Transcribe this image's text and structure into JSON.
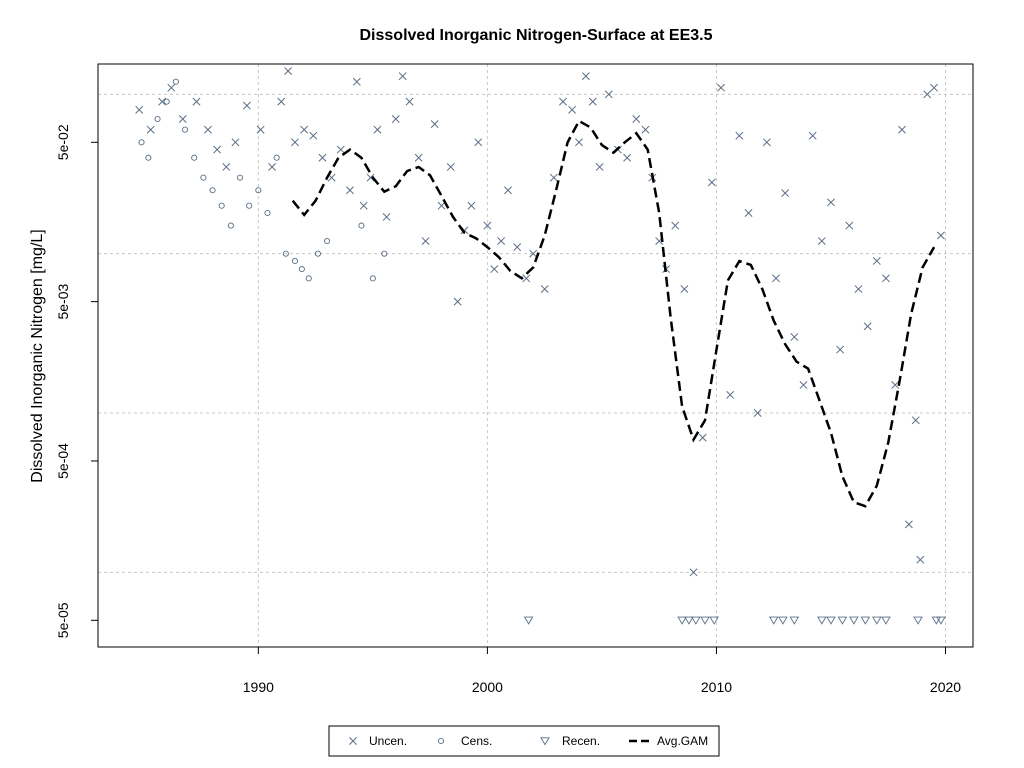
{
  "chart_data": {
    "type": "scatter",
    "title": "Dissolved Inorganic Nitrogen-Surface at EE3.5",
    "xlabel": "",
    "ylabel": "Dissolved Inorganic Nitrogen [mg/L]",
    "y_scale": "log",
    "xlim": [
      1983.0,
      2021.2
    ],
    "ylim": [
      3.4e-05,
      0.155
    ],
    "x_ticks": [
      1990,
      2000,
      2010,
      2020
    ],
    "y_ticks": [
      0.05,
      0.005,
      0.0005,
      5e-05
    ],
    "y_tick_labels": [
      "5e-02",
      "5e-03",
      "5e-04",
      "5e-05"
    ],
    "y_gridlines": [
      0.1,
      0.01,
      0.001,
      0.0001
    ],
    "grid": true,
    "legend": {
      "position": "bottom-center",
      "entries": [
        "Uncen.",
        "Cens.",
        "Recen.",
        "Avg.GAM"
      ]
    },
    "colors": {
      "points": "#5a6e86",
      "gam": "#000000",
      "grid": "#c8c8c8"
    },
    "series": [
      {
        "name": "Uncen.",
        "marker": "x",
        "points": [
          [
            1984.8,
            0.08
          ],
          [
            1985.3,
            0.06
          ],
          [
            1985.8,
            0.09
          ],
          [
            1986.2,
            0.11
          ],
          [
            1986.7,
            0.07
          ],
          [
            1987.3,
            0.09
          ],
          [
            1987.8,
            0.06
          ],
          [
            1988.2,
            0.045
          ],
          [
            1988.6,
            0.035
          ],
          [
            1989.0,
            0.05
          ],
          [
            1989.5,
            0.085
          ],
          [
            1990.1,
            0.06
          ],
          [
            1990.6,
            0.035
          ],
          [
            1991.0,
            0.09
          ],
          [
            1991.3,
            0.14
          ],
          [
            1991.6,
            0.05
          ],
          [
            1992.0,
            0.06
          ],
          [
            1992.4,
            0.055
          ],
          [
            1992.8,
            0.04
          ],
          [
            1993.2,
            0.03
          ],
          [
            1993.6,
            0.045
          ],
          [
            1994.0,
            0.025
          ],
          [
            1994.3,
            0.12
          ],
          [
            1994.6,
            0.02
          ],
          [
            1994.9,
            0.03
          ],
          [
            1995.2,
            0.06
          ],
          [
            1995.6,
            0.017
          ],
          [
            1996.0,
            0.07
          ],
          [
            1996.3,
            0.13
          ],
          [
            1996.6,
            0.09
          ],
          [
            1997.0,
            0.04
          ],
          [
            1997.3,
            0.012
          ],
          [
            1997.7,
            0.065
          ],
          [
            1998.0,
            0.02
          ],
          [
            1998.4,
            0.035
          ],
          [
            1998.7,
            0.005
          ],
          [
            1999.0,
            0.014
          ],
          [
            1999.3,
            0.02
          ],
          [
            1999.6,
            0.05
          ],
          [
            2000.0,
            0.015
          ],
          [
            2000.3,
            0.008
          ],
          [
            2000.6,
            0.012
          ],
          [
            2000.9,
            0.025
          ],
          [
            2001.3,
            0.011
          ],
          [
            2001.7,
            0.007
          ],
          [
            2002.0,
            0.01
          ],
          [
            2002.5,
            0.006
          ],
          [
            2002.9,
            0.03
          ],
          [
            2003.3,
            0.09
          ],
          [
            2003.7,
            0.08
          ],
          [
            2004.0,
            0.05
          ],
          [
            2004.3,
            0.13
          ],
          [
            2004.6,
            0.09
          ],
          [
            2004.9,
            0.035
          ],
          [
            2005.3,
            0.1
          ],
          [
            2005.7,
            0.045
          ],
          [
            2006.1,
            0.04
          ],
          [
            2006.5,
            0.07
          ],
          [
            2006.9,
            0.06
          ],
          [
            2007.2,
            0.03
          ],
          [
            2007.5,
            0.012
          ],
          [
            2007.8,
            0.008
          ],
          [
            2008.2,
            0.015
          ],
          [
            2008.6,
            0.006
          ],
          [
            2009.0,
            0.0001
          ],
          [
            2009.4,
            0.0007
          ],
          [
            2009.8,
            0.028
          ],
          [
            2010.2,
            0.11
          ],
          [
            2010.6,
            0.0013
          ],
          [
            2011.0,
            0.055
          ],
          [
            2011.4,
            0.018
          ],
          [
            2011.8,
            0.001
          ],
          [
            2012.2,
            0.05
          ],
          [
            2012.6,
            0.007
          ],
          [
            2013.0,
            0.024
          ],
          [
            2013.4,
            0.003
          ],
          [
            2013.8,
            0.0015
          ],
          [
            2014.2,
            0.055
          ],
          [
            2014.6,
            0.012
          ],
          [
            2015.0,
            0.021
          ],
          [
            2015.4,
            0.0025
          ],
          [
            2015.8,
            0.015
          ],
          [
            2016.2,
            0.006
          ],
          [
            2016.6,
            0.0035
          ],
          [
            2017.0,
            0.009
          ],
          [
            2017.4,
            0.007
          ],
          [
            2017.8,
            0.0015
          ],
          [
            2018.1,
            0.06
          ],
          [
            2018.4,
            0.0002
          ],
          [
            2018.7,
            0.0009
          ],
          [
            2018.9,
            0.00012
          ],
          [
            2019.2,
            0.1
          ],
          [
            2019.5,
            0.11
          ],
          [
            2019.8,
            0.013
          ]
        ]
      },
      {
        "name": "Cens.",
        "marker": "o",
        "points": [
          [
            1984.9,
            0.05
          ],
          [
            1985.2,
            0.04
          ],
          [
            1985.6,
            0.07
          ],
          [
            1986.0,
            0.09
          ],
          [
            1986.4,
            0.12
          ],
          [
            1986.8,
            0.06
          ],
          [
            1987.2,
            0.04
          ],
          [
            1987.6,
            0.03
          ],
          [
            1988.0,
            0.025
          ],
          [
            1988.4,
            0.02
          ],
          [
            1988.8,
            0.015
          ],
          [
            1989.2,
            0.03
          ],
          [
            1989.6,
            0.02
          ],
          [
            1990.0,
            0.025
          ],
          [
            1990.4,
            0.018
          ],
          [
            1990.8,
            0.04
          ],
          [
            1991.2,
            0.01
          ],
          [
            1991.6,
            0.009
          ],
          [
            1991.9,
            0.008
          ],
          [
            1992.2,
            0.007
          ],
          [
            1992.6,
            0.01
          ],
          [
            1993.0,
            0.012
          ],
          [
            1994.5,
            0.015
          ],
          [
            1995.0,
            0.007
          ],
          [
            1995.5,
            0.01
          ]
        ]
      },
      {
        "name": "Recen.",
        "marker": "triangle-down",
        "points": [
          [
            2001.8,
            5e-05
          ],
          [
            2008.5,
            5e-05
          ],
          [
            2008.8,
            5e-05
          ],
          [
            2009.1,
            5e-05
          ],
          [
            2009.5,
            5e-05
          ],
          [
            2009.9,
            5e-05
          ],
          [
            2012.5,
            5e-05
          ],
          [
            2012.9,
            5e-05
          ],
          [
            2013.4,
            5e-05
          ],
          [
            2014.6,
            5e-05
          ],
          [
            2015.0,
            5e-05
          ],
          [
            2015.5,
            5e-05
          ],
          [
            2016.0,
            5e-05
          ],
          [
            2016.5,
            5e-05
          ],
          [
            2017.0,
            5e-05
          ],
          [
            2017.4,
            5e-05
          ],
          [
            2018.8,
            5e-05
          ],
          [
            2019.6,
            5e-05
          ],
          [
            2019.8,
            5e-05
          ]
        ]
      },
      {
        "name": "Avg.GAM",
        "marker": "dashed-line",
        "points": [
          [
            1991.5,
            0.0215
          ],
          [
            1992.0,
            0.0175
          ],
          [
            1992.5,
            0.0215
          ],
          [
            1993.0,
            0.03
          ],
          [
            1993.5,
            0.04
          ],
          [
            1994.0,
            0.045
          ],
          [
            1994.5,
            0.04
          ],
          [
            1995.0,
            0.03
          ],
          [
            1995.5,
            0.0245
          ],
          [
            1996.0,
            0.0265
          ],
          [
            1996.5,
            0.033
          ],
          [
            1997.0,
            0.035
          ],
          [
            1997.5,
            0.031
          ],
          [
            1998.0,
            0.023
          ],
          [
            1998.5,
            0.017
          ],
          [
            1999.0,
            0.0135
          ],
          [
            1999.5,
            0.0125
          ],
          [
            2000.0,
            0.011
          ],
          [
            2000.5,
            0.0095
          ],
          [
            2001.0,
            0.0078
          ],
          [
            2001.5,
            0.007
          ],
          [
            2002.0,
            0.0082
          ],
          [
            2002.5,
            0.013
          ],
          [
            2003.0,
            0.025
          ],
          [
            2003.5,
            0.05
          ],
          [
            2004.0,
            0.068
          ],
          [
            2004.5,
            0.062
          ],
          [
            2005.0,
            0.048
          ],
          [
            2005.5,
            0.043
          ],
          [
            2006.0,
            0.05
          ],
          [
            2006.5,
            0.057
          ],
          [
            2007.0,
            0.045
          ],
          [
            2007.5,
            0.018
          ],
          [
            2008.0,
            0.004
          ],
          [
            2008.5,
            0.0011
          ],
          [
            2009.0,
            0.00068
          ],
          [
            2009.5,
            0.0009
          ],
          [
            2010.0,
            0.0025
          ],
          [
            2010.5,
            0.0068
          ],
          [
            2011.0,
            0.009
          ],
          [
            2011.5,
            0.0085
          ],
          [
            2012.0,
            0.006
          ],
          [
            2012.5,
            0.0038
          ],
          [
            2013.0,
            0.0027
          ],
          [
            2013.5,
            0.0021
          ],
          [
            2014.0,
            0.0019
          ],
          [
            2014.5,
            0.0012
          ],
          [
            2015.0,
            0.00075
          ],
          [
            2015.5,
            0.0004
          ],
          [
            2016.0,
            0.000275
          ],
          [
            2016.5,
            0.00026
          ],
          [
            2017.0,
            0.00035
          ],
          [
            2017.5,
            0.00065
          ],
          [
            2018.0,
            0.0016
          ],
          [
            2018.5,
            0.0042
          ],
          [
            2019.0,
            0.0082
          ],
          [
            2019.5,
            0.011
          ]
        ]
      }
    ]
  }
}
